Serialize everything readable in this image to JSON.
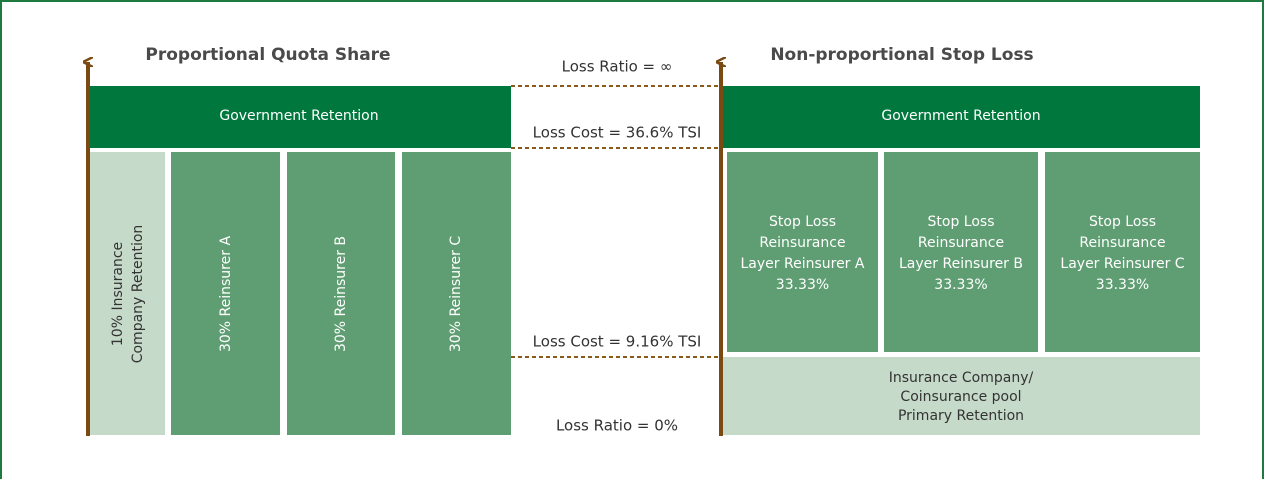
{
  "left": {
    "title": "Proportional Quota Share",
    "top_layer": "Government Retention",
    "retention": [
      "10% Insurance",
      "Company Retention"
    ],
    "reinsurers": [
      "30% Reinsurer A",
      "30% Reinsurer B",
      "30% Reinsurer C"
    ]
  },
  "middle": {
    "loss_ratio_max": "Loss Ratio = ∞",
    "loss_cost_upper": "Loss Cost = 36.6% TSI",
    "loss_cost_lower": "Loss Cost = 9.16% TSI",
    "loss_ratio_min": "Loss Ratio = 0%"
  },
  "right": {
    "title": "Non-proportional Stop Loss",
    "top_layer": "Government Retention",
    "layers": [
      [
        "Stop Loss",
        "Reinsurance",
        "Layer Reinsurer A",
        "33.33%"
      ],
      [
        "Stop Loss",
        "Reinsurance",
        "Layer Reinsurer B",
        "33.33%"
      ],
      [
        "Stop Loss",
        "Reinsurance",
        "Layer Reinsurer C",
        "33.33%"
      ]
    ],
    "primary": [
      "Insurance Company/",
      "Coinsurance pool",
      "Primary Retention"
    ]
  }
}
